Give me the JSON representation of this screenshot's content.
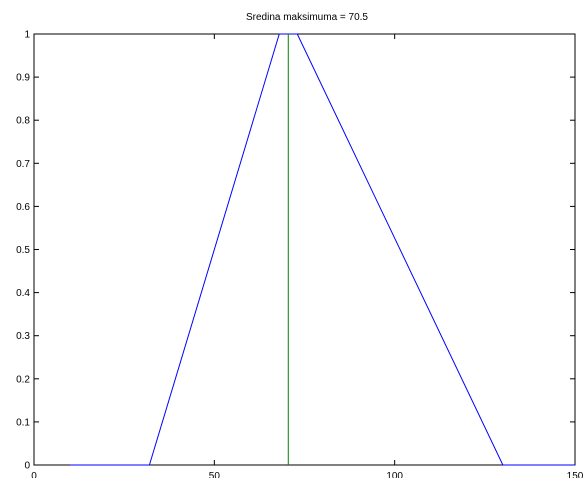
{
  "chart_data": {
    "type": "line",
    "title": "Sredina maksimuma = 70.5",
    "xlabel": "",
    "ylabel": "",
    "xlim": [
      0,
      150
    ],
    "ylim": [
      0,
      1
    ],
    "x_ticks": [
      0,
      50,
      100,
      150
    ],
    "x_tick_labels": [
      "0",
      "50",
      "100",
      "150"
    ],
    "y_ticks": [
      0,
      0.1,
      0.2,
      0.3,
      0.4,
      0.5,
      0.6,
      0.7,
      0.8,
      0.9,
      1
    ],
    "y_tick_labels": [
      "0",
      "0.1",
      "0.2",
      "0.3",
      "0.4",
      "0.5",
      "0.6",
      "0.7",
      "0.8",
      "0.9",
      "1"
    ],
    "grid": false,
    "series": [
      {
        "color": "#0000ff",
        "x": [
          10,
          32,
          68,
          73,
          130,
          150
        ],
        "y": [
          0,
          0,
          1,
          1,
          0,
          0
        ]
      },
      {
        "color": "#008000",
        "x": [
          70.5,
          70.5
        ],
        "y": [
          0,
          1
        ]
      }
    ]
  }
}
